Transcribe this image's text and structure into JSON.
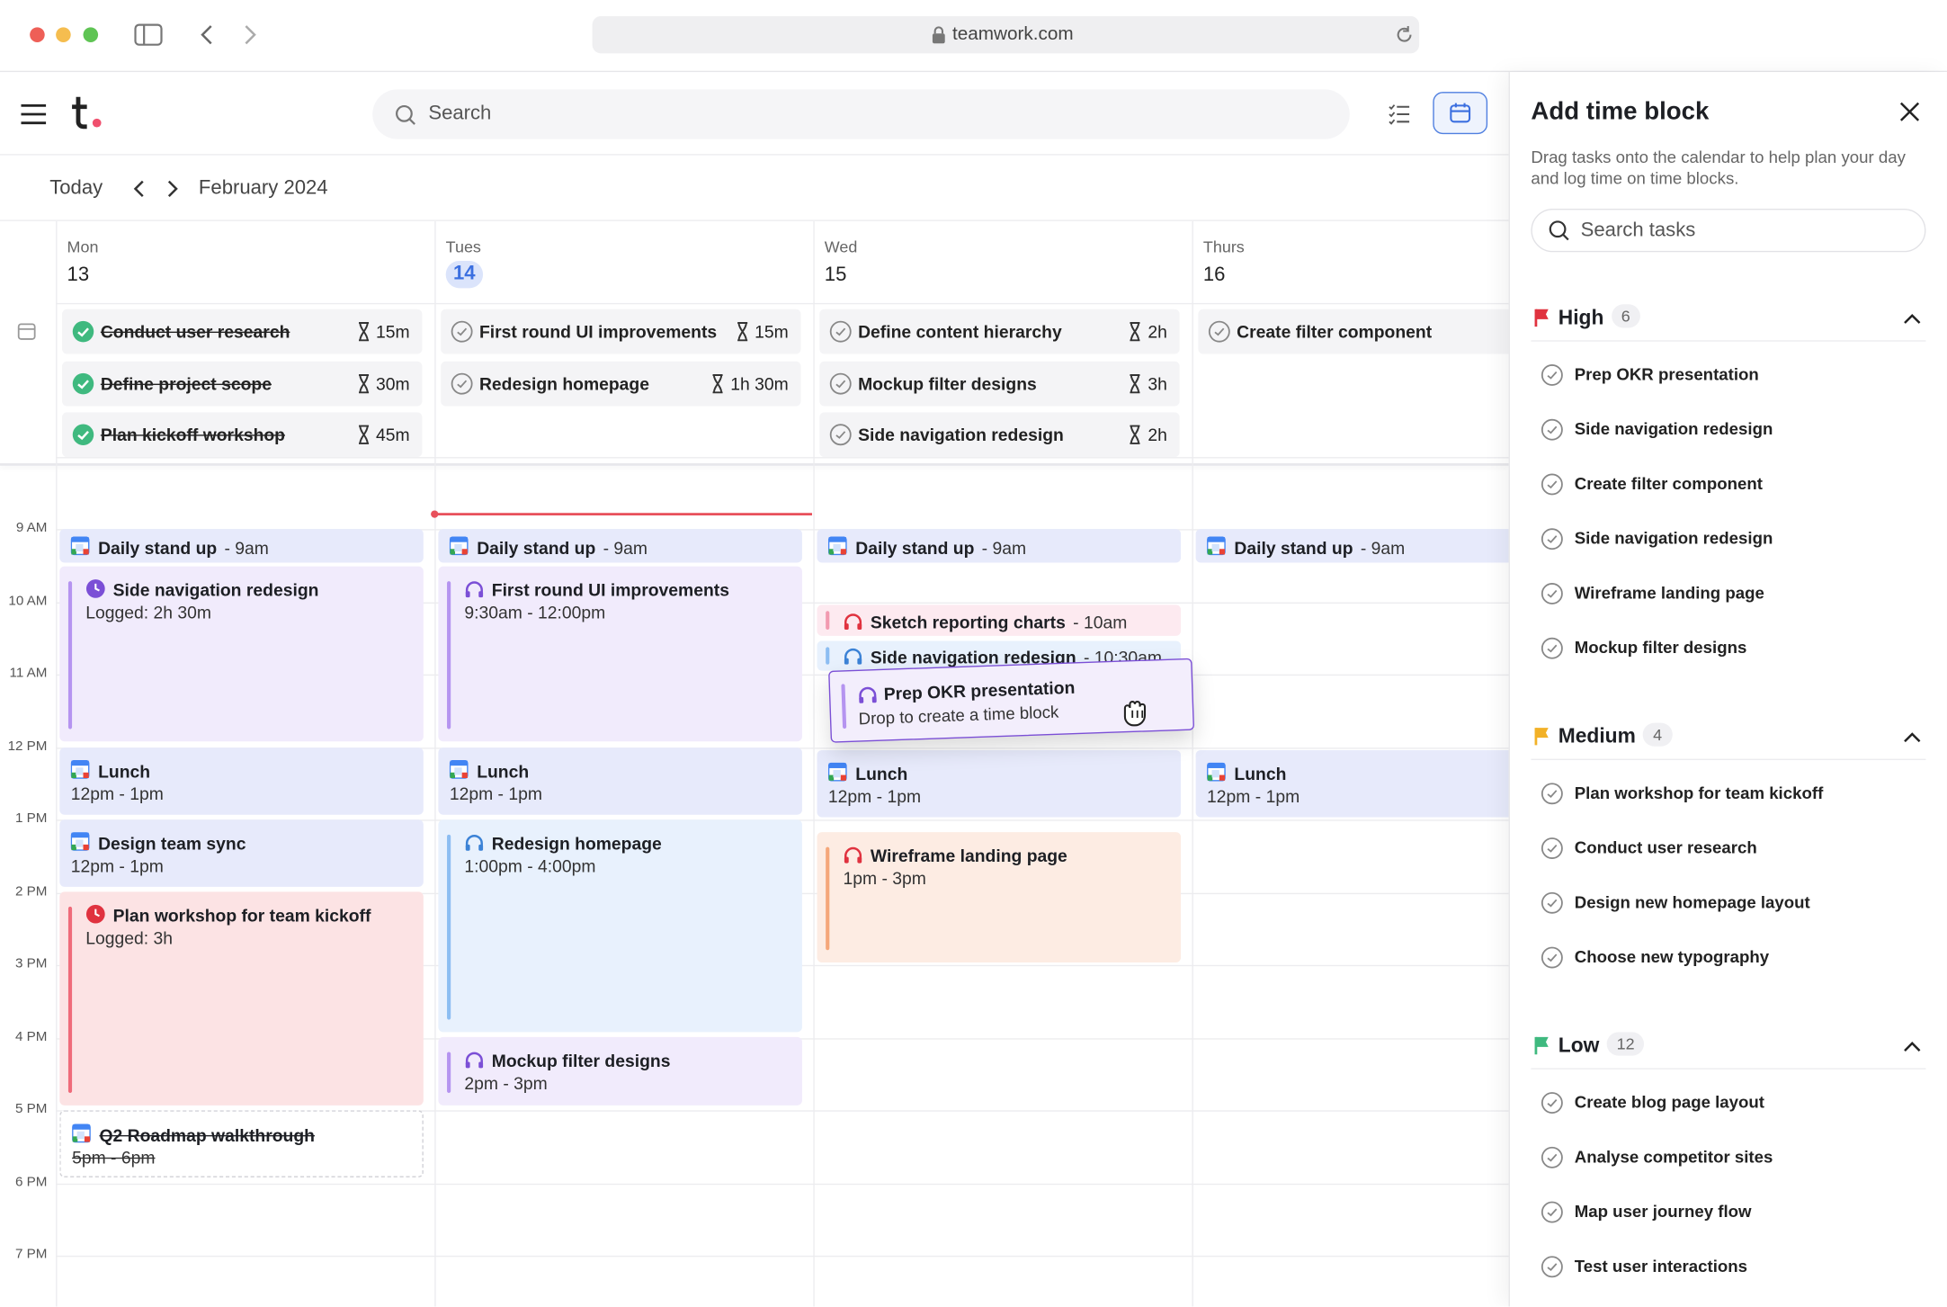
{
  "browser": {
    "url": "teamwork.com"
  },
  "header": {
    "search": "Search"
  },
  "toolbar": {
    "today": "Today",
    "month": "February 2024"
  },
  "days": [
    {
      "name": "Mon",
      "date": "13",
      "selected": false,
      "tasks": [
        {
          "title": "Conduct user research",
          "duration": "15m",
          "done": true
        },
        {
          "title": "Define project scope",
          "duration": "30m",
          "done": true
        },
        {
          "title": "Plan kickoff workshop",
          "duration": "45m",
          "done": true
        }
      ],
      "events": [
        {
          "title": "Daily stand up",
          "detail": "- 9am"
        },
        {
          "title": "Side navigation redesign",
          "detail": "Logged: 2h 30m"
        },
        {
          "title": "Lunch",
          "detail": "12pm - 1pm"
        },
        {
          "title": "Design team sync",
          "detail": "12pm - 1pm"
        },
        {
          "title": "Plan workshop for team kickoff",
          "detail": "Logged: 3h"
        },
        {
          "title": "Q2 Roadmap walkthrough",
          "detail": "5pm - 6pm",
          "done": true
        }
      ]
    },
    {
      "name": "Tues",
      "date": "14",
      "selected": true,
      "tasks": [
        {
          "title": "First round UI improvements",
          "duration": "15m",
          "done": false
        },
        {
          "title": "Redesign homepage",
          "duration": "1h 30m",
          "done": false
        }
      ],
      "events": [
        {
          "title": "Daily stand up",
          "detail": "- 9am"
        },
        {
          "title": "First round UI improvements",
          "detail": "9:30am - 12:00pm"
        },
        {
          "title": "Lunch",
          "detail": "12pm - 1pm"
        },
        {
          "title": "Redesign homepage",
          "detail": "1:00pm - 4:00pm"
        },
        {
          "title": "Mockup filter designs",
          "detail": "2pm - 3pm"
        }
      ]
    },
    {
      "name": "Wed",
      "date": "15",
      "selected": false,
      "tasks": [
        {
          "title": "Define content hierarchy",
          "duration": "2h",
          "done": false
        },
        {
          "title": "Mockup filter designs",
          "duration": "3h",
          "done": false
        },
        {
          "title": "Side navigation redesign",
          "duration": "2h",
          "done": false
        }
      ],
      "events": [
        {
          "title": "Daily stand up",
          "detail": "- 9am"
        },
        {
          "title": "Sketch reporting charts",
          "detail": "- 10am"
        },
        {
          "title": "Side navigation redesign",
          "detail": "- 10:30am"
        },
        {
          "title": "Lunch",
          "detail": "12pm - 1pm"
        },
        {
          "title": "Wireframe landing page",
          "detail": "1pm - 3pm"
        }
      ]
    },
    {
      "name": "Thurs",
      "date": "16",
      "selected": false,
      "tasks": [
        {
          "title": "Create filter component",
          "done": false
        }
      ],
      "events": [
        {
          "title": "Daily stand up",
          "detail": "- 9am"
        },
        {
          "title": "Lunch",
          "detail": "12pm - 1pm"
        }
      ]
    }
  ],
  "time_labels": [
    "9 AM",
    "10 AM",
    "11 AM",
    "12 PM",
    "1 PM",
    "2 PM",
    "3 PM",
    "4 PM",
    "5 PM",
    "6 PM",
    "7 PM"
  ],
  "drag_card": {
    "title": "Prep OKR presentation",
    "hint": "Drop to create a time block"
  },
  "panel": {
    "title": "Add time block",
    "description": "Drag tasks onto the calendar to help plan your day and log time on time blocks.",
    "search": "Search tasks",
    "groups": [
      {
        "name": "High",
        "count": 6,
        "color": "#e0323f",
        "tasks": [
          "Prep OKR presentation",
          "Side navigation redesign",
          "Create filter component",
          "Side navigation redesign",
          "Wireframe landing page",
          "Mockup filter designs"
        ]
      },
      {
        "name": "Medium",
        "count": 4,
        "color": "#f2b127",
        "tasks": [
          "Plan workshop for team kickoff",
          "Conduct user research",
          "Design new homepage layout",
          "Choose new typography"
        ]
      },
      {
        "name": "Low",
        "count": 12,
        "color": "#3fb97f",
        "tasks": [
          "Create blog page layout",
          "Analyse competitor sites",
          "Map user journey flow",
          "Test user interactions"
        ]
      }
    ]
  }
}
